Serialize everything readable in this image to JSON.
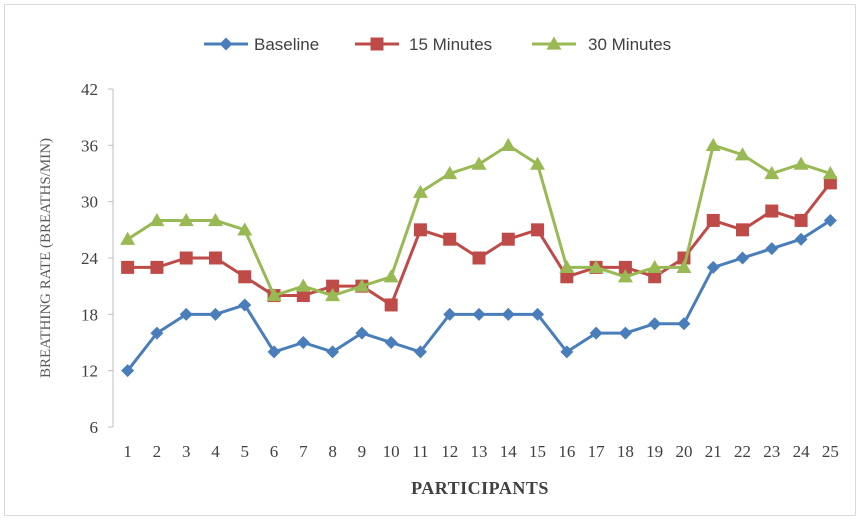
{
  "chart_data": {
    "type": "line",
    "xlabel": "PARTICIPANTS",
    "ylabel": "BREATHING RATE (BREATHS/MIN)",
    "ylim": [
      6,
      42
    ],
    "yticks": [
      "6",
      "12",
      "18",
      "24",
      "30",
      "36",
      "42"
    ],
    "categories": [
      "1",
      "2",
      "3",
      "4",
      "5",
      "6",
      "7",
      "8",
      "9",
      "10",
      "11",
      "12",
      "13",
      "14",
      "15",
      "16",
      "17",
      "18",
      "19",
      "20",
      "21",
      "22",
      "23",
      "24",
      "25"
    ],
    "grid": false,
    "legend_position": "top-center",
    "series": [
      {
        "name": "Baseline",
        "color": "#4a7ebb",
        "marker": "diamond",
        "values": [
          12,
          16,
          18,
          18,
          19,
          14,
          15,
          14,
          16,
          15,
          14,
          18,
          18,
          18,
          18,
          14,
          16,
          16,
          17,
          17,
          23,
          24,
          25,
          26,
          28
        ]
      },
      {
        "name": "15 Minutes",
        "color": "#be4b48",
        "marker": "square",
        "values": [
          23,
          23,
          24,
          24,
          22,
          20,
          20,
          21,
          21,
          19,
          27,
          26,
          24,
          26,
          27,
          22,
          23,
          23,
          22,
          24,
          28,
          27,
          29,
          28,
          32
        ]
      },
      {
        "name": "30 Minutes",
        "color": "#98b954",
        "marker": "triangle",
        "values": [
          26,
          28,
          28,
          28,
          27,
          20,
          21,
          20,
          21,
          22,
          31,
          33,
          34,
          36,
          34,
          23,
          23,
          22,
          23,
          23,
          36,
          35,
          33,
          34,
          33
        ]
      }
    ]
  }
}
